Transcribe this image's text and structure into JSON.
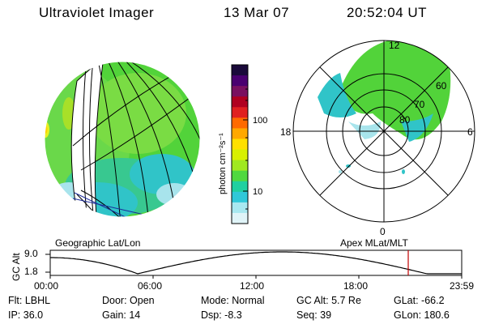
{
  "header": {
    "title": "Ultraviolet Imager",
    "date": "13 Mar 07",
    "time": "20:52:04 UT"
  },
  "left_panel": {
    "caption": "Geographic Lat/Lon"
  },
  "right_panel": {
    "caption": "Apex MLat/MLT",
    "mlt_labels": {
      "top": "12",
      "left": "18",
      "right": "6",
      "bottom": "0"
    },
    "lat_labels": [
      "60",
      "70",
      "80"
    ]
  },
  "colorbar": {
    "unit_label": "photon cm⁻²s⁻¹",
    "ticks": [
      "100",
      "10"
    ],
    "colors": [
      "#1a0a3a",
      "#4a0070",
      "#7a1060",
      "#b00020",
      "#e02020",
      "#ff6a00",
      "#ffa800",
      "#ffe000",
      "#d8f000",
      "#a0e820",
      "#50d840",
      "#20d0a0",
      "#30c8d8",
      "#a8e8f0",
      "#e0f4f8"
    ]
  },
  "altitude": {
    "axis_label": "GC Alt",
    "y_ticks": [
      "9.0",
      "1.8"
    ],
    "x_ticks": [
      "00:00",
      "06:00",
      "12:00",
      "18:00",
      "23:59"
    ],
    "curve_color": "#000000",
    "marker_color": "#c00000"
  },
  "info": {
    "filter": "Flt: LBHL",
    "ip": "IP: 36.0",
    "door": "Door: Open",
    "gain": "Gain: 14",
    "mode": "Mode: Normal",
    "dsp": "Dsp:    -8.3",
    "gc_alt": "GC Alt: 5.7 Re",
    "seq": "Seq: 39",
    "glat": "GLat:  -66.2",
    "glon": "GLon: 180.6"
  }
}
